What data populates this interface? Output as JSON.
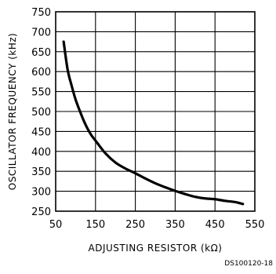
{
  "chart_data": {
    "type": "line",
    "title": "",
    "xlabel": "ADJUSTING RESISTOR (kΩ)",
    "ylabel": "OSCILLATOR FREQUENCY (kHz)",
    "xlim": [
      50,
      550
    ],
    "ylim": [
      250,
      750
    ],
    "xticks": [
      "50",
      "150",
      "250",
      "350",
      "450",
      "550"
    ],
    "yticks": [
      "250",
      "300",
      "350",
      "400",
      "450",
      "500",
      "550",
      "600",
      "650",
      "700",
      "750"
    ],
    "grid": true,
    "series": [
      {
        "x": [
          70,
          80,
          90,
          100,
          110,
          120,
          130,
          140,
          150,
          175,
          200,
          225,
          250,
          275,
          300,
          325,
          350,
          375,
          400,
          425,
          450,
          475,
          500,
          520
        ],
        "values": [
          675,
          605,
          565,
          530,
          503,
          478,
          457,
          440,
          427,
          395,
          372,
          357,
          345,
          332,
          320,
          310,
          301,
          293,
          286,
          282,
          280,
          276,
          273,
          268
        ]
      }
    ]
  },
  "figure_code": "DS100120-18"
}
